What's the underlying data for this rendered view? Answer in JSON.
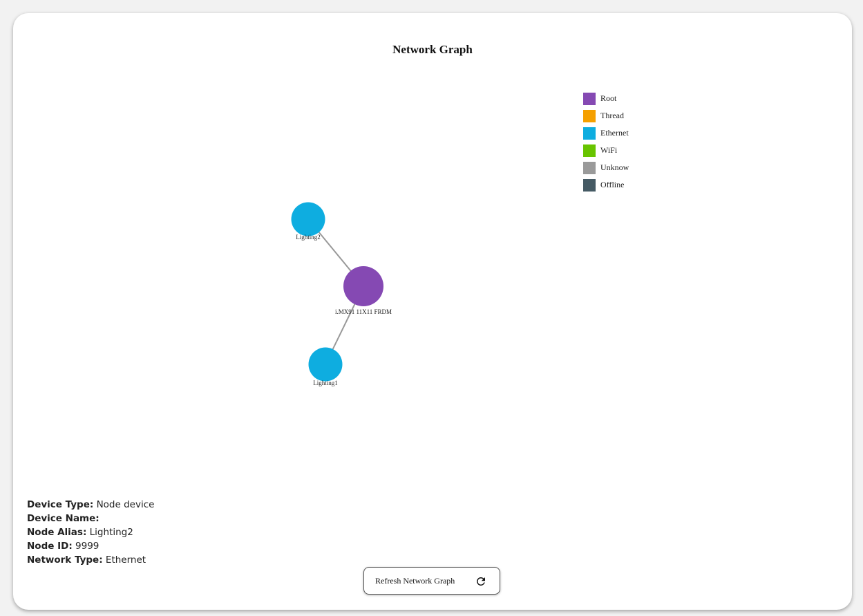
{
  "title": "Network Graph",
  "legend": [
    {
      "label": "Root",
      "color": "#8549b3"
    },
    {
      "label": "Thread",
      "color": "#f5a000"
    },
    {
      "label": "Ethernet",
      "color": "#0eade0"
    },
    {
      "label": "WiFi",
      "color": "#68c400"
    },
    {
      "label": "Unknow",
      "color": "#9a9a9a"
    },
    {
      "label": "Offline",
      "color": "#455a64"
    }
  ],
  "nodes": [
    {
      "id": "root",
      "label": "i.MX91 11X11 FRDM",
      "type": "Root"
    },
    {
      "id": "l2",
      "label": "Lighting2",
      "type": "Ethernet"
    },
    {
      "id": "l1",
      "label": "Lighting1",
      "type": "Ethernet"
    }
  ],
  "details": {
    "device_type_label": "Device Type:",
    "device_type": "Node device",
    "device_name_label": "Device Name:",
    "device_name": "",
    "node_alias_label": "Node Alias:",
    "node_alias": "Lighting2",
    "node_id_label": "Node ID:",
    "node_id": "9999",
    "network_type_label": "Network Type:",
    "network_type": "Ethernet"
  },
  "refresh_button": {
    "label": "Refresh Network Graph",
    "icon": "refresh-icon"
  }
}
